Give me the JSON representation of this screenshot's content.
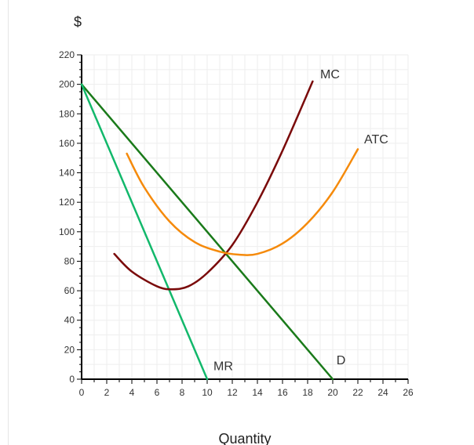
{
  "chart_data": {
    "type": "line",
    "title": "",
    "ylabel": "$",
    "xlabel": "Quantity",
    "xlim": [
      0,
      26
    ],
    "ylim": [
      0,
      220
    ],
    "x_ticks": [
      0,
      2,
      4,
      6,
      8,
      10,
      12,
      14,
      16,
      18,
      20,
      22,
      24,
      26
    ],
    "y_ticks": [
      0,
      20,
      40,
      60,
      80,
      100,
      120,
      140,
      160,
      180,
      200,
      220
    ],
    "grid": true,
    "series": [
      {
        "name": "D",
        "color": "#1a7a1a",
        "points": [
          [
            0,
            200
          ],
          [
            20,
            0
          ]
        ]
      },
      {
        "name": "MR",
        "color": "#12b86b",
        "points": [
          [
            0,
            200
          ],
          [
            10,
            0
          ]
        ]
      },
      {
        "name": "MC",
        "color": "#7a0a0a",
        "points": [
          [
            2.6,
            85
          ],
          [
            4,
            73
          ],
          [
            6,
            63
          ],
          [
            7.2,
            61
          ],
          [
            8.5,
            63
          ],
          [
            10,
            72
          ],
          [
            12,
            91
          ],
          [
            14,
            120
          ],
          [
            16,
            155
          ],
          [
            18.4,
            202
          ]
        ]
      },
      {
        "name": "ATC",
        "color": "#f58a0b",
        "points": [
          [
            3.6,
            153
          ],
          [
            5,
            130
          ],
          [
            7,
            107
          ],
          [
            9,
            93
          ],
          [
            11,
            86.5
          ],
          [
            12.5,
            84.5
          ],
          [
            14,
            85
          ],
          [
            16,
            92
          ],
          [
            18,
            106
          ],
          [
            20,
            127
          ],
          [
            22,
            156
          ]
        ]
      }
    ],
    "curve_labels": [
      {
        "text": "MC",
        "x": 19.0,
        "y": 204
      },
      {
        "text": "ATC",
        "x": 22.5,
        "y": 160
      },
      {
        "text": "D",
        "x": 20.3,
        "y": 10
      },
      {
        "text": "MR",
        "x": 10.5,
        "y": 6
      }
    ]
  }
}
